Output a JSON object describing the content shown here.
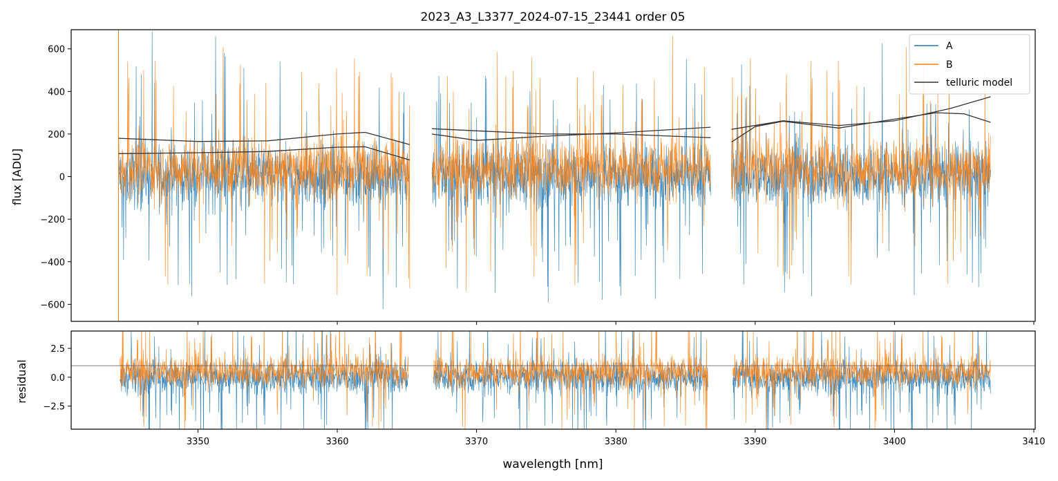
{
  "chart_data": {
    "type": "line",
    "title": "2023_A3_L3377_2024-07-15_23441  order 05",
    "xlabel": "wavelength [nm]",
    "x_ticks": [
      3350,
      3360,
      3370,
      3380,
      3390,
      3400,
      3410
    ],
    "xlim": [
      3340.9,
      3410.1
    ],
    "legend_position": "top-right",
    "panels": [
      {
        "name": "flux",
        "ylabel": "flux [ADU]",
        "ylim": [
          -680,
          690
        ],
        "y_ticks": [
          -600,
          -400,
          -200,
          0,
          200,
          400,
          600
        ],
        "segments": [
          [
            3344.3,
            3365.2
          ],
          [
            3366.8,
            3386.8
          ],
          [
            3388.3,
            3406.9
          ]
        ],
        "series": [
          {
            "name": "A",
            "color": "#1f77b4",
            "center": 5,
            "spread": 190,
            "note_values": "noisy spectrum, frequent dips to -600"
          },
          {
            "name": "B",
            "color": "#ff7f0e",
            "center": 40,
            "spread": 190
          },
          {
            "name": "telluric model",
            "color": "#333333",
            "curves": [
              {
                "x": [
                  3344.3,
                  3350,
                  3355,
                  3360,
                  3362,
                  3365.2
                ],
                "y": [
                  180,
                  165,
                  168,
                  200,
                  208,
                  150
                ]
              },
              {
                "x": [
                  3344.3,
                  3350,
                  3355,
                  3360,
                  3362,
                  3365.2
                ],
                "y": [
                  108,
                  112,
                  118,
                  138,
                  140,
                  78
                ]
              },
              {
                "x": [
                  3366.8,
                  3370,
                  3375,
                  3380,
                  3386.8
                ],
                "y": [
                  225,
                  215,
                  200,
                  200,
                  183
                ]
              },
              {
                "x": [
                  3366.8,
                  3370,
                  3375,
                  3380,
                  3386.8
                ],
                "y": [
                  200,
                  170,
                  190,
                  205,
                  232
                ]
              },
              {
                "x": [
                  3388.3,
                  3392,
                  3396,
                  3400,
                  3404,
                  3406.9
                ],
                "y": [
                  222,
                  262,
                  240,
                  262,
                  320,
                  375
                ]
              },
              {
                "x": [
                  3388.3,
                  3390,
                  3392,
                  3396,
                  3400,
                  3403,
                  3405,
                  3406.9
                ],
                "y": [
                  162,
                  235,
                  260,
                  228,
                  270,
                  300,
                  295,
                  255
                ]
              }
            ]
          }
        ]
      },
      {
        "name": "residual",
        "ylabel": "residual",
        "ylim": [
          -4.5,
          4.0
        ],
        "y_ticks": [
          -2.5,
          0.0,
          2.5
        ],
        "y_tick_labels": [
          "−2.5",
          "0.0",
          "2.5"
        ],
        "hline": 1.0,
        "segments": [
          [
            3344.4,
            3365.1
          ],
          [
            3366.9,
            3386.6
          ],
          [
            3388.4,
            3406.9
          ]
        ],
        "series": [
          {
            "name": "A",
            "color": "#1f77b4",
            "center": 0.0,
            "spread": 1.9
          },
          {
            "name": "B",
            "color": "#ff7f0e",
            "center": 0.5,
            "spread": 1.8
          }
        ]
      }
    ],
    "legend": [
      "A",
      "B",
      "telluric model"
    ]
  }
}
